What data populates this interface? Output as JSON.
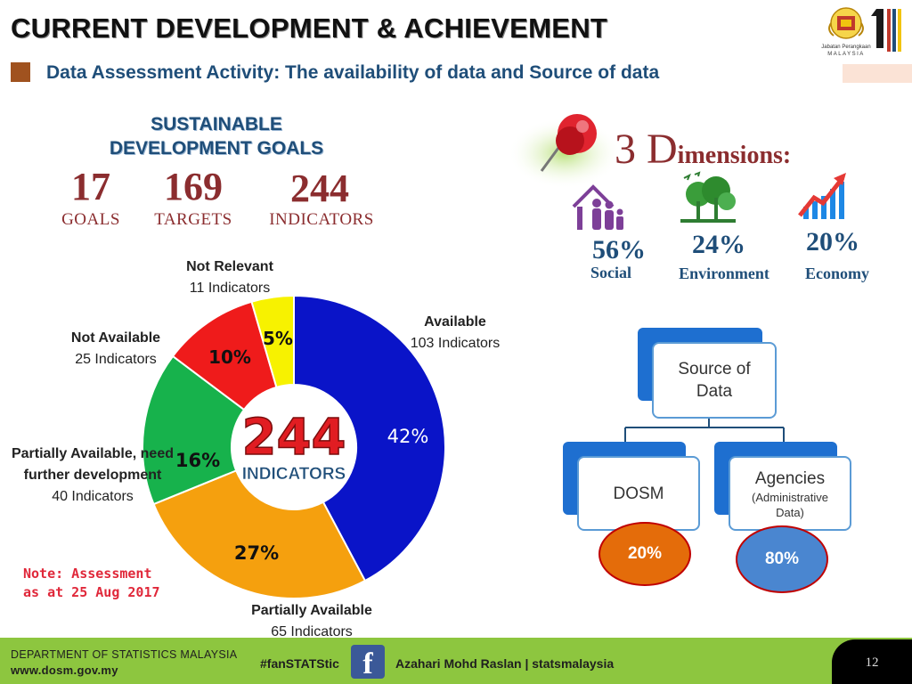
{
  "header": {
    "title": "CURRENT DEVELOPMENT & ACHIEVEMENT",
    "subtitle": "Data Assessment Activity: The availability of data and Source of data",
    "logo_text": "Jabatan Perangkaan",
    "logo_country": "MALAYSIA"
  },
  "sdg": {
    "heading_line1": "SUSTAINABLE",
    "heading_line2": "DEVELOPMENT GOALS",
    "stats": [
      {
        "value": "17",
        "label": "GOALS"
      },
      {
        "value": "169",
        "label": "TARGETS"
      },
      {
        "value": "244",
        "label": "INDICATORS"
      }
    ]
  },
  "chart_data": {
    "type": "pie",
    "center_value": "244",
    "center_label": "INDICATORS",
    "slices": [
      {
        "name": "Available",
        "count_label": "103 Indicators",
        "value": 103,
        "percent_label": "42%",
        "color": "#0a14c8"
      },
      {
        "name": "Partially Available",
        "count_label": "65 Indicators",
        "value": 65,
        "percent_label": "27%",
        "color": "#f5a00e"
      },
      {
        "name": "Partially Available, need further development",
        "count_label": "40 Indicators",
        "value": 40,
        "percent_label": "16%",
        "color": "#17b24c"
      },
      {
        "name": "Not Available",
        "count_label": "25 Indicators",
        "value": 25,
        "percent_label": "10%",
        "color": "#ef1b1b"
      },
      {
        "name": "Not Relevant",
        "count_label": "11 Indicators",
        "value": 11,
        "percent_label": "5%",
        "color": "#f7f200"
      }
    ]
  },
  "note": {
    "line1": "Note: Assessment",
    "line2": "as at 25 Aug 2017"
  },
  "dimensions": {
    "title_big": "3 D",
    "title_rest": "imensions:",
    "items": [
      {
        "percent": "56%",
        "label": "Social",
        "icon": "family-home-icon"
      },
      {
        "percent": "24%",
        "label": "Environment",
        "icon": "forest-icon"
      },
      {
        "percent": "20%",
        "label": "Economy",
        "icon": "growth-chart-icon"
      }
    ]
  },
  "source": {
    "root": "Source of Data",
    "dosm": "DOSM",
    "agencies": "Agencies",
    "agencies_sub": "(Administrative Data)",
    "dosm_pct": "20%",
    "agencies_pct": "80%",
    "colors": {
      "dosm_oval": "#e46c0a",
      "agencies_oval": "#4a86d0",
      "oval_border": "#c00000"
    }
  },
  "footer": {
    "dept": "DEPARTMENT OF STATISTICS MALAYSIA",
    "url": "www.dosm.gov.my",
    "hashtag": "#fanSTATStic",
    "author": "Azahari Mohd Raslan | statsmalaysia",
    "page": "12"
  }
}
